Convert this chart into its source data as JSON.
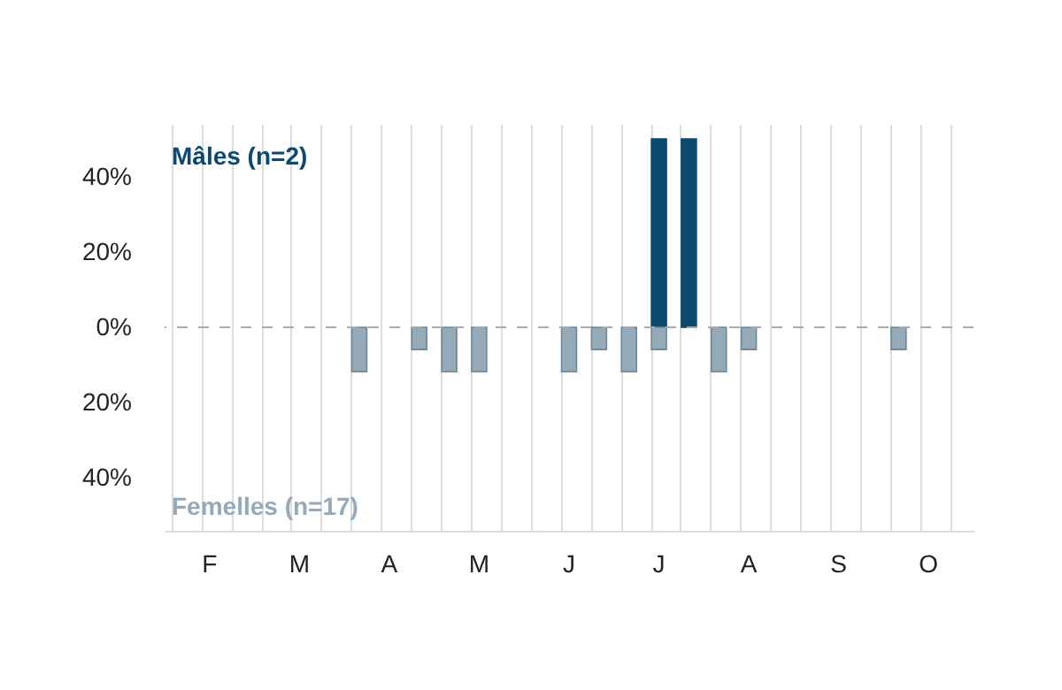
{
  "chart_data": {
    "type": "bar",
    "categories": [
      null,
      "F",
      null,
      null,
      "M",
      null,
      null,
      "A",
      null,
      null,
      "M",
      null,
      null,
      "J",
      null,
      null,
      "J",
      null,
      null,
      "A",
      null,
      null,
      "S",
      null,
      null,
      "O",
      null
    ],
    "series": [
      {
        "name": "Mâles (n=2)",
        "color": "#0b4a6e",
        "values": [
          null,
          null,
          null,
          null,
          null,
          null,
          null,
          null,
          null,
          null,
          null,
          null,
          null,
          null,
          null,
          null,
          50,
          50,
          null,
          null,
          null,
          null,
          null,
          null,
          null,
          null,
          null
        ]
      },
      {
        "name": "Femelles (n=17)",
        "color": "#94aab9",
        "values": [
          null,
          null,
          null,
          null,
          null,
          null,
          -11.8,
          null,
          -5.9,
          -11.8,
          -11.8,
          null,
          null,
          -11.8,
          -5.9,
          -11.8,
          -5.9,
          null,
          -11.8,
          -5.9,
          null,
          null,
          null,
          null,
          -5.9,
          null,
          null
        ]
      }
    ],
    "ylim": [
      -54,
      54
    ],
    "yticks": [
      {
        "value": -40,
        "label": "40%"
      },
      {
        "value": -20,
        "label": "20%"
      },
      {
        "value": 0,
        "label": "0%"
      },
      {
        "value": 20,
        "label": "20%"
      },
      {
        "value": 40,
        "label": "40%"
      }
    ],
    "ref_lines": [
      {
        "axis": "y",
        "value": 0,
        "color": "#aaaaaa",
        "line_style": "dashed"
      }
    ],
    "grid": "x"
  }
}
